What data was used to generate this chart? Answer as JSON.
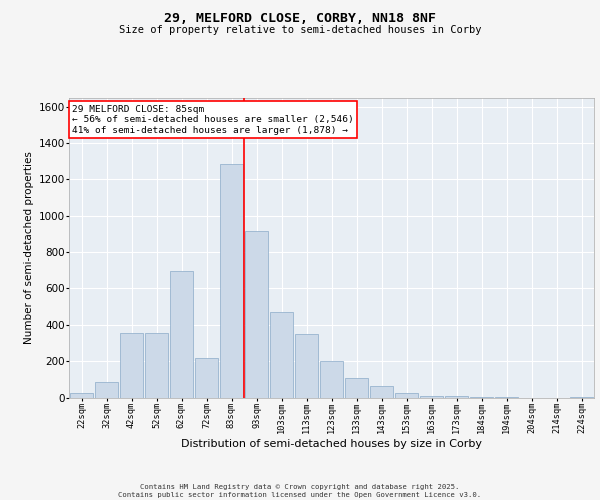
{
  "title_line1": "29, MELFORD CLOSE, CORBY, NN18 8NF",
  "title_line2": "Size of property relative to semi-detached houses in Corby",
  "xlabel": "Distribution of semi-detached houses by size in Corby",
  "ylabel": "Number of semi-detached properties",
  "bar_categories": [
    "22sqm",
    "32sqm",
    "42sqm",
    "52sqm",
    "62sqm",
    "72sqm",
    "83sqm",
    "93sqm",
    "103sqm",
    "113sqm",
    "123sqm",
    "133sqm",
    "143sqm",
    "153sqm",
    "163sqm",
    "173sqm",
    "184sqm",
    "194sqm",
    "204sqm",
    "214sqm",
    "224sqm"
  ],
  "bar_values": [
    25,
    85,
    355,
    355,
    695,
    215,
    1285,
    915,
    470,
    350,
    200,
    105,
    65,
    25,
    10,
    10,
    5,
    5,
    0,
    0,
    5
  ],
  "bar_color": "#ccd9e8",
  "bar_edge_color": "#8aaac8",
  "vline_color": "red",
  "annotation_title": "29 MELFORD CLOSE: 85sqm",
  "annotation_line1": "← 56% of semi-detached houses are smaller (2,546)",
  "annotation_line2": "41% of semi-detached houses are larger (1,878) →",
  "ylim": [
    0,
    1650
  ],
  "yticks": [
    0,
    200,
    400,
    600,
    800,
    1000,
    1200,
    1400,
    1600
  ],
  "background_color": "#e8eef4",
  "grid_color": "#ffffff",
  "footer_line1": "Contains HM Land Registry data © Crown copyright and database right 2025.",
  "footer_line2": "Contains public sector information licensed under the Open Government Licence v3.0."
}
